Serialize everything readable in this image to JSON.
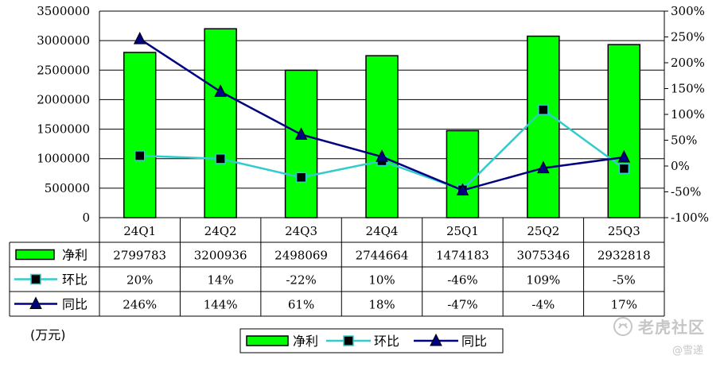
{
  "chart_data": {
    "type": "bar+line",
    "categories": [
      "24Q1",
      "24Q2",
      "24Q3",
      "24Q4",
      "25Q1",
      "25Q2",
      "25Q3"
    ],
    "series": [
      {
        "name": "净利",
        "type": "bar",
        "axis": "left",
        "values": [
          2799783,
          3200936,
          2498069,
          2744664,
          1474183,
          3075346,
          2932818
        ],
        "labels": [
          "2799783",
          "3200936",
          "2498069",
          "2744664",
          "1474183",
          "3075346",
          "2932818"
        ],
        "color": "#00ff00"
      },
      {
        "name": "环比",
        "type": "line",
        "axis": "right",
        "marker": "square",
        "values": [
          20,
          14,
          -22,
          10,
          -46,
          109,
          -5
        ],
        "labels": [
          "20%",
          "14%",
          "-22%",
          "10%",
          "-46%",
          "109%",
          "-5%"
        ],
        "color": "#33cccc"
      },
      {
        "name": "同比",
        "type": "line",
        "axis": "right",
        "marker": "triangle",
        "values": [
          246,
          144,
          61,
          18,
          -47,
          -4,
          17
        ],
        "labels": [
          "246%",
          "144%",
          "61%",
          "18%",
          "-47%",
          "-4%",
          "17%"
        ],
        "color": "#000080"
      }
    ],
    "y_left": {
      "min": 0,
      "max": 3500000,
      "step": 500000,
      "tick_labels": [
        "0",
        "500000",
        "1000000",
        "1500000",
        "2000000",
        "2500000",
        "3000000",
        "3500000"
      ]
    },
    "y_right": {
      "min": -100,
      "max": 300,
      "step": 50,
      "tick_labels": [
        "-100%",
        "-50%",
        "0%",
        "50%",
        "100%",
        "150%",
        "200%",
        "250%",
        "300%"
      ]
    },
    "grid": true,
    "legend": "bottom-center",
    "data_table": true
  },
  "unit_label": "(万元)",
  "watermark": {
    "name": "老虎社区",
    "author": "@雪递"
  }
}
